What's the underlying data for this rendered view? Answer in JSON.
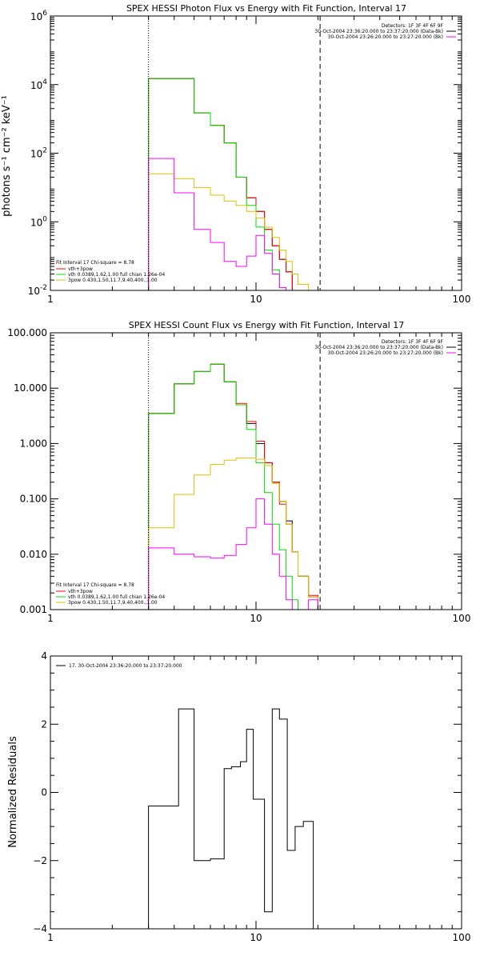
{
  "chart_data": [
    {
      "type": "line",
      "title": "SPEX HESSI Photon Flux vs Energy with Fit Function, Interval 17",
      "ylabel": "photons s⁻¹ cm⁻² keV⁻¹",
      "xlabel": "",
      "xscale": "log",
      "yscale": "log",
      "xlim": [
        1,
        100
      ],
      "ylim": [
        0.01,
        1000000
      ],
      "x_ticks": [
        1,
        10,
        100
      ],
      "x_tick_labels": [
        "1",
        "10",
        "100"
      ],
      "y_ticks": [
        0.01,
        1,
        100,
        10000,
        1000000
      ],
      "y_tick_base": [
        "10",
        "10",
        "10",
        "10",
        "10"
      ],
      "y_tick_exp": [
        "-2",
        "0",
        "2",
        "4",
        "6"
      ],
      "vlines": [
        {
          "x": 3,
          "style": "dotted"
        },
        {
          "x": 20.5,
          "style": "dashed"
        }
      ],
      "legend_right": {
        "header": "Detectors: 1F 3F 4F 6F 9F",
        "entries": [
          {
            "label": "30-Oct-2004 23:36:20.000 to 23:37:20.000 (Data-Bk)",
            "color": "#000000"
          },
          {
            "label": "30-Oct-2004 23:26:20.000 to 23:27:20.000 (Bk)",
            "color": "#ff00ff"
          }
        ]
      },
      "legend_left": {
        "header": "Fit Interval 17   Chi-square = 8.78",
        "entries": [
          {
            "label": "vth+3pow",
            "color": "#ff0000"
          },
          {
            "label": "vth 0.0389,1.62,1.00  full chian 1.26e-04",
            "color": "#00e000"
          },
          {
            "label": "3pow 0.430,1.50,11.7,9.40,400.,1.00",
            "color": "#e0c000"
          }
        ]
      },
      "bin_edges": [
        3,
        4,
        5,
        6,
        7,
        8,
        9,
        10,
        11,
        12,
        13,
        14,
        15,
        16,
        18,
        20,
        22
      ],
      "series": [
        {
          "color": "#000000",
          "values": [
            15000,
            15000,
            1500,
            650,
            200,
            20,
            5,
            2,
            0.6,
            0.2,
            0.08,
            0.035,
            0.01,
            0.01,
            0.01,
            0.01
          ]
        },
        {
          "color": "#ff0000",
          "values": [
            15000,
            15000,
            1500,
            650,
            200,
            20,
            5,
            2,
            0.6,
            0.2,
            0.08,
            0.035,
            0.01,
            0.01,
            0.01,
            0.01
          ]
        },
        {
          "color": "#00e000",
          "values": [
            15000,
            15000,
            1500,
            650,
            200,
            20,
            3,
            0.7,
            0.15,
            0.04,
            0.012,
            0.01,
            0.01,
            0.01,
            0.01,
            0.01
          ]
        },
        {
          "color": "#e0c000",
          "values": [
            25,
            18,
            10,
            6,
            4,
            3,
            2,
            1.3,
            0.7,
            0.35,
            0.15,
            0.07,
            0.03,
            0.015,
            0.01,
            0.01
          ]
        },
        {
          "color": "#ff00ff",
          "values": [
            70,
            7,
            0.6,
            0.25,
            0.07,
            0.05,
            0.1,
            0.4,
            0.12,
            0.03,
            0.012,
            0.01,
            0.01,
            0.01,
            0.01,
            0.01
          ]
        }
      ]
    },
    {
      "type": "line",
      "title": "SPEX HESSI Count Flux vs Energy with Fit Function, Interval 17",
      "ylabel": "",
      "xlabel": "",
      "xscale": "log",
      "yscale": "log",
      "xlim": [
        1,
        100
      ],
      "ylim": [
        0.001,
        100
      ],
      "x_ticks": [
        1,
        10,
        100
      ],
      "x_tick_labels": [
        "1",
        "10",
        "100"
      ],
      "y_ticks": [
        0.001,
        0.01,
        0.1,
        1,
        10,
        100
      ],
      "y_tick_labels": [
        "0.001",
        "0.010",
        "0.100",
        "1.000",
        "10.000",
        "100.000"
      ],
      "vlines": [
        {
          "x": 3,
          "style": "dotted"
        },
        {
          "x": 20.5,
          "style": "dashed"
        }
      ],
      "legend_right": {
        "header": "Detectors: 1F 3F 4F 6F 9F",
        "entries": [
          {
            "label": "30-Oct-2004 23:36:20.000 to 23:37:20.000 (Data-Bk)",
            "color": "#000000"
          },
          {
            "label": "30-Oct-2004 23:26:20.000 to 23:27:20.000 (Bk)",
            "color": "#ff00ff"
          }
        ]
      },
      "legend_left": {
        "header": "Fit Interval 17   Chi-square = 8.78",
        "entries": [
          {
            "label": "vth+3pow",
            "color": "#ff0000"
          },
          {
            "label": "vth 0.0389,1.62,1.00  full chian 1.26e-04",
            "color": "#00e000"
          },
          {
            "label": "3pow 0.430,1.50,11.7,9.40,400.,1.00",
            "color": "#e0c000"
          }
        ]
      },
      "bin_edges": [
        3,
        4,
        5,
        6,
        7,
        8,
        9,
        10,
        11,
        12,
        13,
        14,
        15,
        16,
        18,
        20,
        22
      ],
      "series": [
        {
          "color": "#000000",
          "values": [
            3.5,
            12,
            20,
            27,
            13,
            5,
            2.3,
            1,
            0.45,
            0.2,
            0.09,
            0.04,
            0.011,
            0.004,
            0.0017,
            0.001
          ]
        },
        {
          "color": "#ff0000",
          "values": [
            3.5,
            12,
            20,
            27,
            13,
            5.3,
            2.5,
            1.1,
            0.45,
            0.2,
            0.08,
            0.035,
            0.011,
            0.004,
            0.0018,
            0.001
          ]
        },
        {
          "color": "#00e000",
          "values": [
            3.5,
            12,
            20,
            27,
            13,
            5,
            1.8,
            0.45,
            0.13,
            0.035,
            0.012,
            0.004,
            0.0015,
            0.001,
            0.001,
            0.001
          ]
        },
        {
          "color": "#e0c000",
          "values": [
            0.03,
            0.12,
            0.27,
            0.42,
            0.5,
            0.55,
            0.55,
            0.52,
            0.4,
            0.19,
            0.09,
            0.035,
            0.011,
            0.004,
            0.0017,
            0.001
          ]
        },
        {
          "color": "#ff00ff",
          "values": [
            0.013,
            0.01,
            0.009,
            0.0085,
            0.0095,
            0.015,
            0.03,
            0.1,
            0.035,
            0.01,
            0.004,
            0.0015,
            0.001,
            0.001,
            0.0015,
            0.001
          ]
        }
      ]
    },
    {
      "type": "line",
      "title": "",
      "ylabel": "Normalized Residuals",
      "xlabel": "",
      "xscale": "log",
      "yscale": "linear",
      "xlim": [
        1,
        100
      ],
      "ylim": [
        -4,
        4
      ],
      "x_ticks": [
        1,
        10,
        100
      ],
      "x_tick_labels": [
        "1",
        "10",
        "100"
      ],
      "y_ticks": [
        -4,
        -2,
        0,
        2,
        4
      ],
      "y_tick_labels": [
        "−4",
        "−2",
        "0",
        "2",
        "4"
      ],
      "legend": {
        "entries": [
          {
            "label": "17. 30-Oct-2004 23:36:20.000 to 23:37:20.000",
            "color": "#000000"
          }
        ]
      },
      "bin_edges": [
        3,
        3.6,
        4.2,
        5,
        6,
        7,
        7.6,
        8.4,
        9,
        9.7,
        11,
        12,
        13,
        14.2,
        15.5,
        17,
        19,
        20.5
      ],
      "series": [
        {
          "color": "#000000",
          "values": [
            -0.4,
            -0.4,
            2.45,
            -2.0,
            -1.95,
            0.7,
            0.75,
            0.9,
            1.85,
            -0.2,
            -3.5,
            2.45,
            2.15,
            -1.7,
            -1.0,
            -0.85,
            -4
          ]
        }
      ]
    }
  ]
}
